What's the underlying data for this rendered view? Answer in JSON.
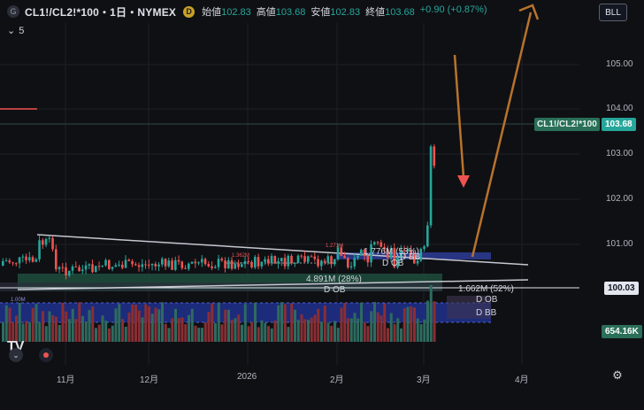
{
  "header": {
    "symbol_icon": "G",
    "symbol": "CL1!/CL2!*100・1日・NYMEX",
    "d_badge": "D",
    "ohlc": [
      {
        "label": "始値",
        "value": "102.83"
      },
      {
        "label": "高値",
        "value": "103.68"
      },
      {
        "label": "安値",
        "value": "102.83"
      },
      {
        "label": "終値",
        "value": "103.68"
      },
      {
        "label": "",
        "value": "+0.90 (+0.87%)"
      }
    ],
    "bll_button": "BLL",
    "collapse_count": "5"
  },
  "price_axis": {
    "ticks": [
      "105.00",
      "104.00",
      "103.00",
      "102.00",
      "101.00"
    ],
    "symbol_tag": "CL1!/CL2!*100",
    "symbol_tag_value": "103.68",
    "line_value": "100.03",
    "volume_value": "654.16K"
  },
  "time_axis": {
    "ticks": [
      "11月",
      "12月",
      "2026",
      "2月",
      "3月",
      "4月"
    ]
  },
  "annotations": {
    "vol1": "1.776M (53%)",
    "vol1_label": "D BB",
    "ob1": "D OB",
    "vol2": "4.891M (28%)",
    "ob2": "D OB",
    "vol3": "1.662M (52%)",
    "ob3": "D OB",
    "bb3": "D BB",
    "small1": "1.271M",
    "small2": "1.362M",
    "small3": "1.00M"
  },
  "colors": {
    "up": "#26a69a",
    "down": "#ef5350",
    "accent_orange": "#b8732c",
    "ob_blue": "#2b3a8f"
  },
  "logo": "TV"
}
